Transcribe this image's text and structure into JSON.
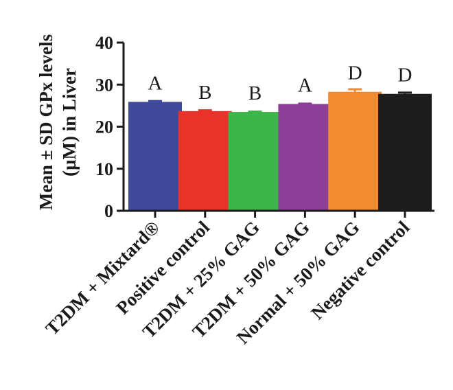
{
  "chart_data": {
    "type": "bar",
    "ylabel_line1": "Mean ± SD GPx levels",
    "ylabel_line2": "(µM) in Liver",
    "ylim": [
      0,
      40
    ],
    "yticks": [
      "0",
      "10",
      "20",
      "30",
      "40"
    ],
    "categories": [
      "T2DM + Mixtard®",
      "Positive control",
      "T2DM + 25% GAG",
      "T2DM + 50% GAG",
      "Normal + 50% GAG",
      "Negative control"
    ],
    "values": [
      25.9,
      23.7,
      23.5,
      25.4,
      28.3,
      27.8
    ],
    "errors": [
      0.2,
      0.2,
      0.1,
      0.1,
      0.6,
      0.3
    ],
    "significance_letters": [
      "A",
      "B",
      "B",
      "A",
      "D",
      "D"
    ],
    "colors": [
      "#3f4a9a",
      "#e8332b",
      "#3cb54a",
      "#8b3f96",
      "#f28a30",
      "#1d1d1b"
    ],
    "grid": false
  }
}
